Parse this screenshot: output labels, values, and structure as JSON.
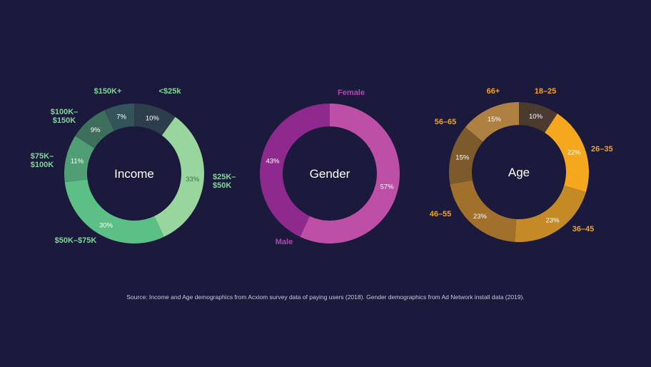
{
  "chart_data": [
    {
      "type": "pie",
      "center_label": "Income",
      "categories": [
        "<$25k",
        "$25K–\n$50K",
        "$50K–$75K",
        "$75K–\n$100K",
        "$100K–\n$150K",
        "$150K+"
      ],
      "values": [
        10,
        33,
        30,
        11,
        9,
        7
      ],
      "value_labels": [
        "10%",
        "33%",
        "30%",
        "11%",
        "9%",
        "7%"
      ],
      "colors": [
        "#2c3d4b",
        "#99d69e",
        "#5cc086",
        "#4f9e74",
        "#3e6e5c",
        "#32545a"
      ],
      "label_color": "#7dd896"
    },
    {
      "type": "pie",
      "center_label": "Gender",
      "categories": [
        "Female",
        "Male"
      ],
      "values": [
        57,
        43
      ],
      "value_labels": [
        "57%",
        "43%"
      ],
      "colors": [
        "#bd4fa6",
        "#8e2a8e"
      ],
      "label_color": "#b445b0"
    },
    {
      "type": "pie",
      "center_label": "Age",
      "categories": [
        "18–25",
        "26–35",
        "36–45",
        "46–55",
        "56–65",
        "66+"
      ],
      "values": [
        10,
        22,
        23,
        23,
        15,
        15
      ],
      "value_labels": [
        "10%",
        "22%",
        "23%",
        "23%",
        "15%",
        "15%"
      ],
      "colors": [
        "#4b3a2f",
        "#f5a81e",
        "#c48a26",
        "#a1702a",
        "#7c5a2c",
        "#ae8142"
      ],
      "label_color": "#f2a11c"
    }
  ],
  "source": "Source: Income and Age demographics from Acxiom survey data of paying users (2018).  Gender demographics from Ad Network install data (2019)."
}
